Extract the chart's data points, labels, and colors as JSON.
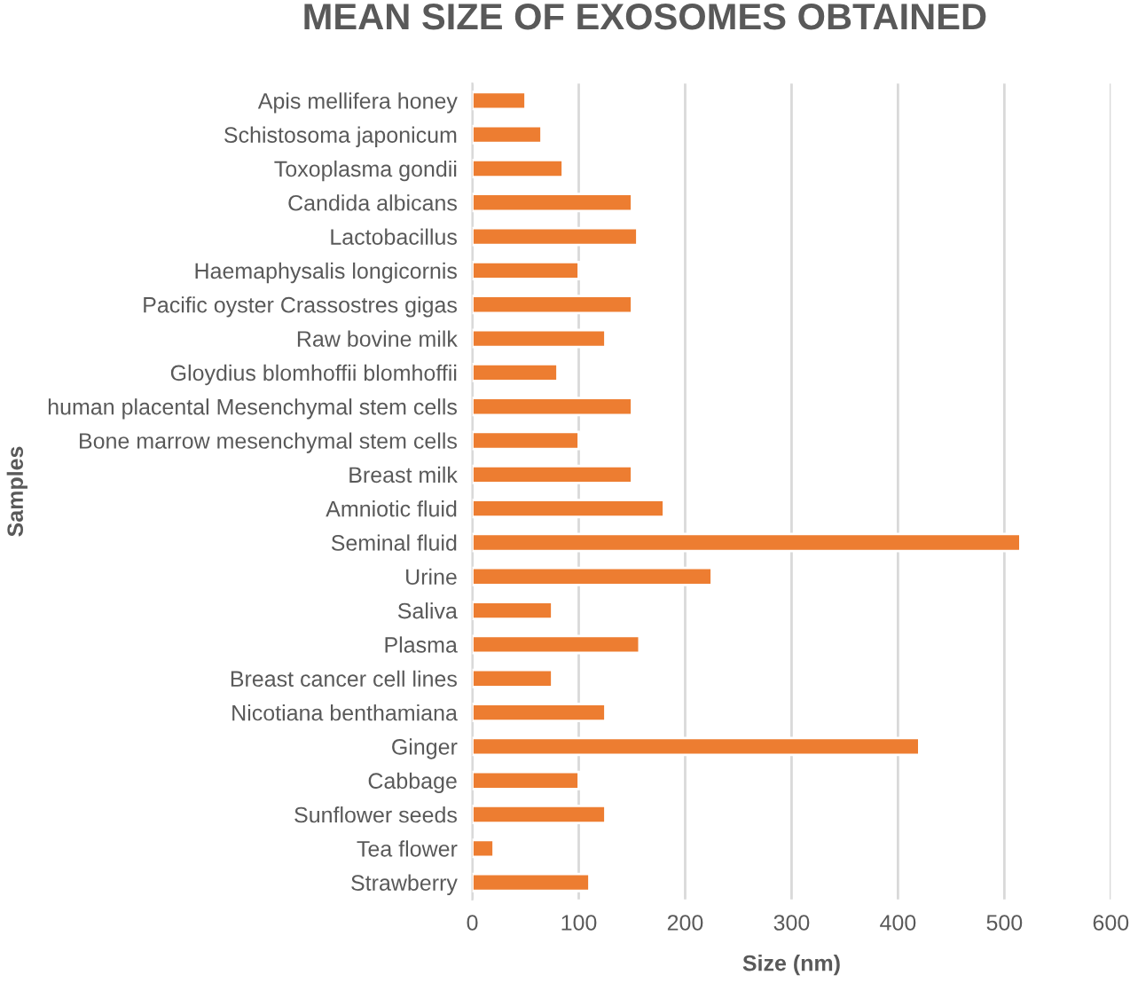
{
  "chart_data": {
    "type": "bar",
    "orientation": "horizontal",
    "title": "MEAN SIZE OF EXOSOMES OBTAINED",
    "xlabel": "Size (nm)",
    "ylabel": "Samples",
    "categories": [
      "Apis mellifera honey",
      "Schistosoma japonicum",
      "Toxoplasma gondii",
      "Candida albicans",
      "Lactobacillus",
      "Haemaphysalis longicornis",
      "Pacific oyster Crassostres gigas",
      "Raw bovine milk",
      "Gloydius blomhoffii blomhoffii",
      "human placental Mesenchymal stem cells",
      "Bone marrow mesenchymal stem cells",
      "Breast milk",
      "Amniotic fluid",
      "Seminal fluid",
      "Urine",
      "Saliva",
      "Plasma",
      "Breast cancer cell lines",
      "Nicotiana benthamiana",
      "Ginger",
      "Cabbage",
      "Sunflower seeds",
      "Tea flower",
      "Strawberry"
    ],
    "values": [
      50,
      65,
      85,
      150,
      155,
      100,
      150,
      125,
      80,
      150,
      100,
      150,
      180,
      515,
      225,
      75,
      157,
      75,
      125,
      420,
      100,
      125,
      20,
      110
    ],
    "color": "#ed7d31",
    "xlim": [
      0,
      600
    ],
    "xticks": [
      0,
      100,
      200,
      300,
      400,
      500,
      600
    ],
    "grid": "x"
  }
}
